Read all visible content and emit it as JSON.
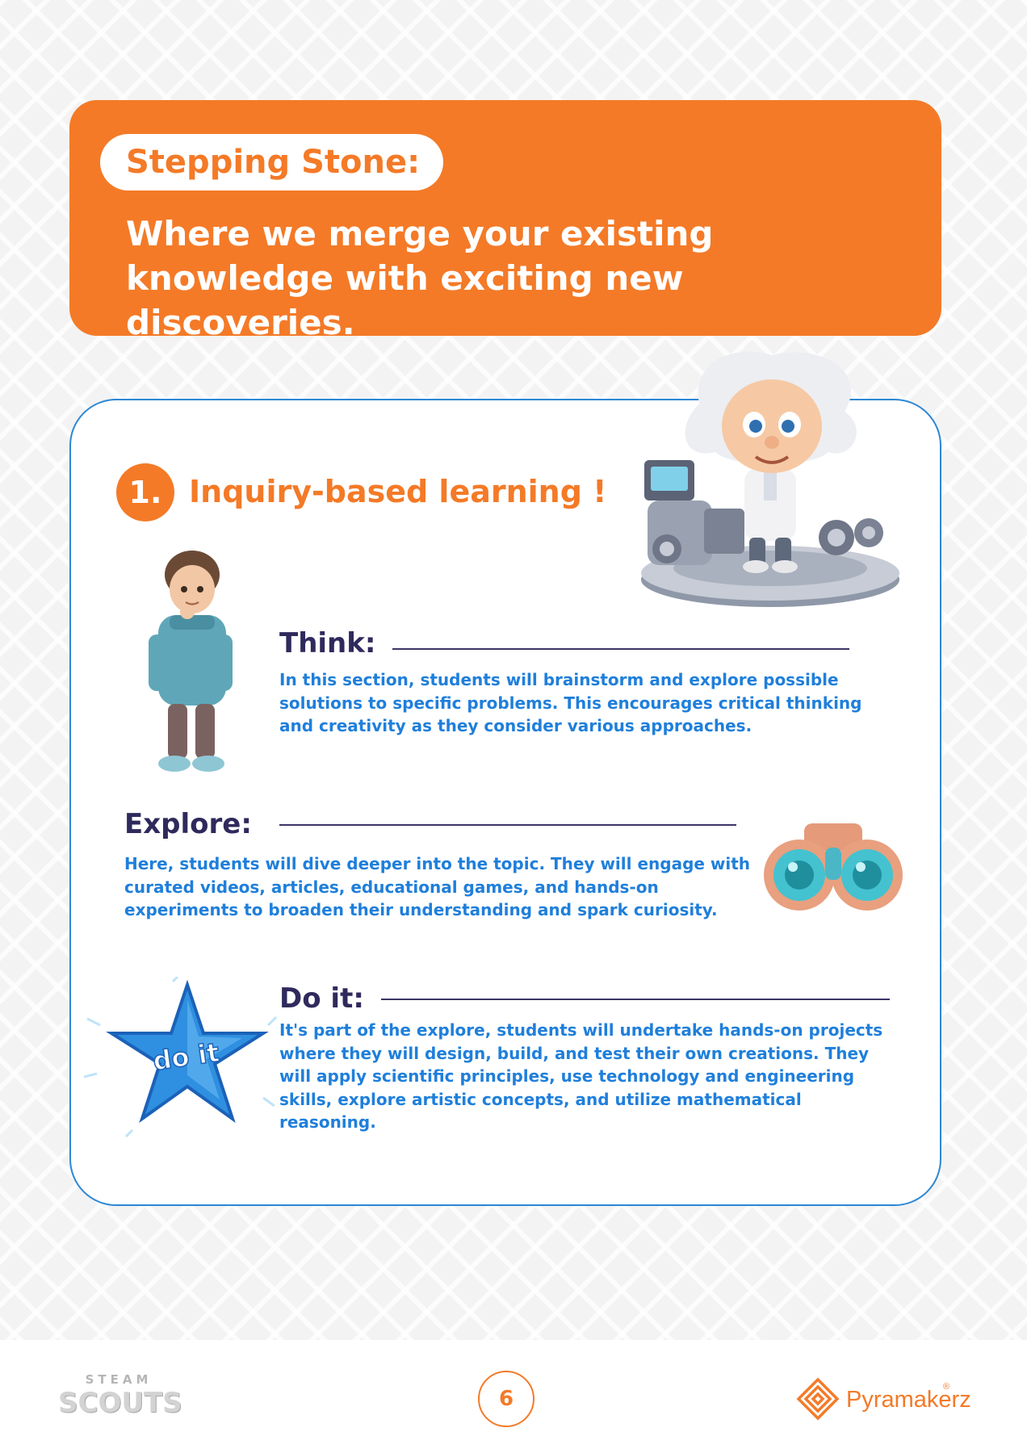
{
  "banner": {
    "label": "Stepping Stone:",
    "text": "Where we merge your existing knowledge with exciting new discoveries."
  },
  "section": {
    "number": "1.",
    "title": "Inquiry-based learning !"
  },
  "items": [
    {
      "heading": "Think:",
      "text": "In this section, students will brainstorm and explore possible solutions to specific problems. This encourages critical thinking and creativity as they consider various approaches."
    },
    {
      "heading": "Explore:",
      "text": "Here, students will dive deeper into the topic. They will engage with curated videos, articles, educational games, and hands-on experiments to broaden their understanding and spark curiosity."
    },
    {
      "heading": "Do it:",
      "text": "It's part of the explore, students will undertake hands-on projects where they will design, build, and test their own creations. They will apply scientific principles, use technology and engineering skills, explore artistic concepts, and utilize mathematical reasoning."
    }
  ],
  "illustrations": {
    "star_text": "do it"
  },
  "footer": {
    "page_number": "6",
    "brand_left_top": "STEAM",
    "brand_left_main": "SCOUTS",
    "brand_right": "Pyramakerz",
    "brand_right_mark": "®"
  },
  "colors": {
    "accent_orange": "#f47a27",
    "text_blue": "#1f7fdb",
    "heading_navy": "#2f2a5c",
    "card_border": "#2c87d6"
  }
}
